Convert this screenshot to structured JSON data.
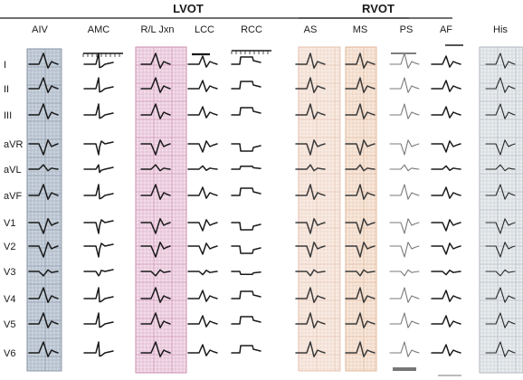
{
  "groups": [
    {
      "label": "LVOT",
      "columns": [
        0,
        1,
        2,
        3,
        4
      ]
    },
    {
      "label": "RVOT",
      "columns": [
        5,
        6,
        7,
        8
      ]
    }
  ],
  "columns": [
    {
      "label": "AIV",
      "paper": "#c9d2dd",
      "grid": "#7d8b9c",
      "trace_color": "#1a1a1a",
      "style": "aiv"
    },
    {
      "label": "AMC",
      "paper": "none",
      "grid": "none",
      "trace_color": "#1a1a1a",
      "style": "amc"
    },
    {
      "label": "R/L Jxn",
      "paper": "#f3dcea",
      "grid": "#c585a6",
      "trace_color": "#1a1a1a",
      "style": "rl"
    },
    {
      "label": "LCC",
      "paper": "none",
      "grid": "none",
      "trace_color": "#1a1a1a",
      "style": "lcc"
    },
    {
      "label": "RCC",
      "paper": "none",
      "grid": "none",
      "trace_color": "#1a1a1a",
      "style": "rcc"
    },
    {
      "label": "AS",
      "paper": "#f8ece4",
      "grid": "#e2b9a5",
      "trace_color": "#3a3a3a",
      "style": "as"
    },
    {
      "label": "MS",
      "paper": "#f7e8dc",
      "grid": "#dcae8e",
      "trace_color": "#3a3a3a",
      "style": "ms"
    },
    {
      "label": "PS",
      "paper": "none",
      "grid": "none",
      "trace_color": "#7a7a7a",
      "style": "ps"
    },
    {
      "label": "AF",
      "paper": "none",
      "grid": "none",
      "trace_color": "#1a1a1a",
      "style": "af"
    },
    {
      "label": "His",
      "paper": "#e9ecef",
      "grid": "#aab1b8",
      "trace_color": "#2a2a2a",
      "style": "his"
    }
  ],
  "leads": [
    "I",
    "II",
    "III",
    "aVR",
    "aVL",
    "aVF",
    "V1",
    "V2",
    "V3",
    "V4",
    "V5",
    "V6"
  ]
}
